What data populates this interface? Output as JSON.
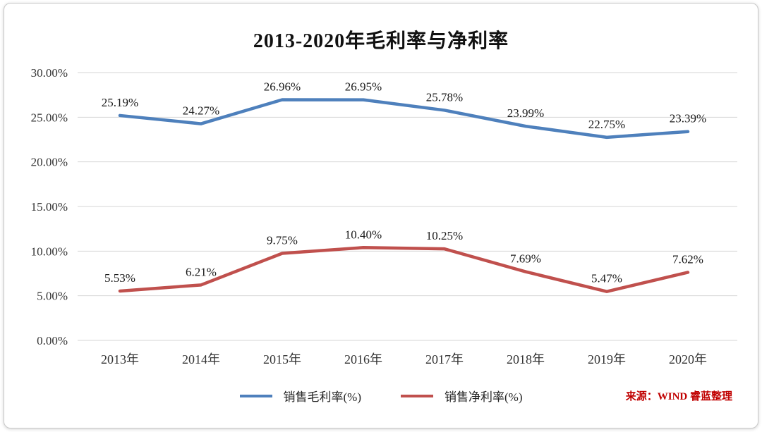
{
  "page": {
    "title": "2013-2020年毛利率与净利率",
    "source_note": "来源：WIND 睿蓝整理"
  },
  "chart_data": {
    "type": "line",
    "title": "2013-2020年毛利率与净利率",
    "categories": [
      "2013年",
      "2014年",
      "2015年",
      "2016年",
      "2017年",
      "2018年",
      "2019年",
      "2020年"
    ],
    "series": [
      {
        "name": "销售毛利率(%)",
        "color": "#4e80bc",
        "values": [
          25.19,
          24.27,
          26.96,
          26.95,
          25.78,
          23.99,
          22.75,
          23.39
        ]
      },
      {
        "name": "销售净利率(%)",
        "color": "#c0504d",
        "values": [
          5.53,
          6.21,
          9.75,
          10.4,
          10.25,
          7.69,
          5.47,
          7.62
        ]
      }
    ],
    "xlabel": "",
    "ylabel": "",
    "ylim": [
      0,
      30
    ],
    "ytick_step": 5,
    "ytick_suffix": "%",
    "ytick_decimals": 2,
    "data_label_suffix": "%",
    "data_label_decimals": 2,
    "grid": true,
    "gridline_color": "#d6d6d6",
    "label_color": "#1a1a1a",
    "axis_text_color": "#333333",
    "legend_position": "bottom"
  }
}
